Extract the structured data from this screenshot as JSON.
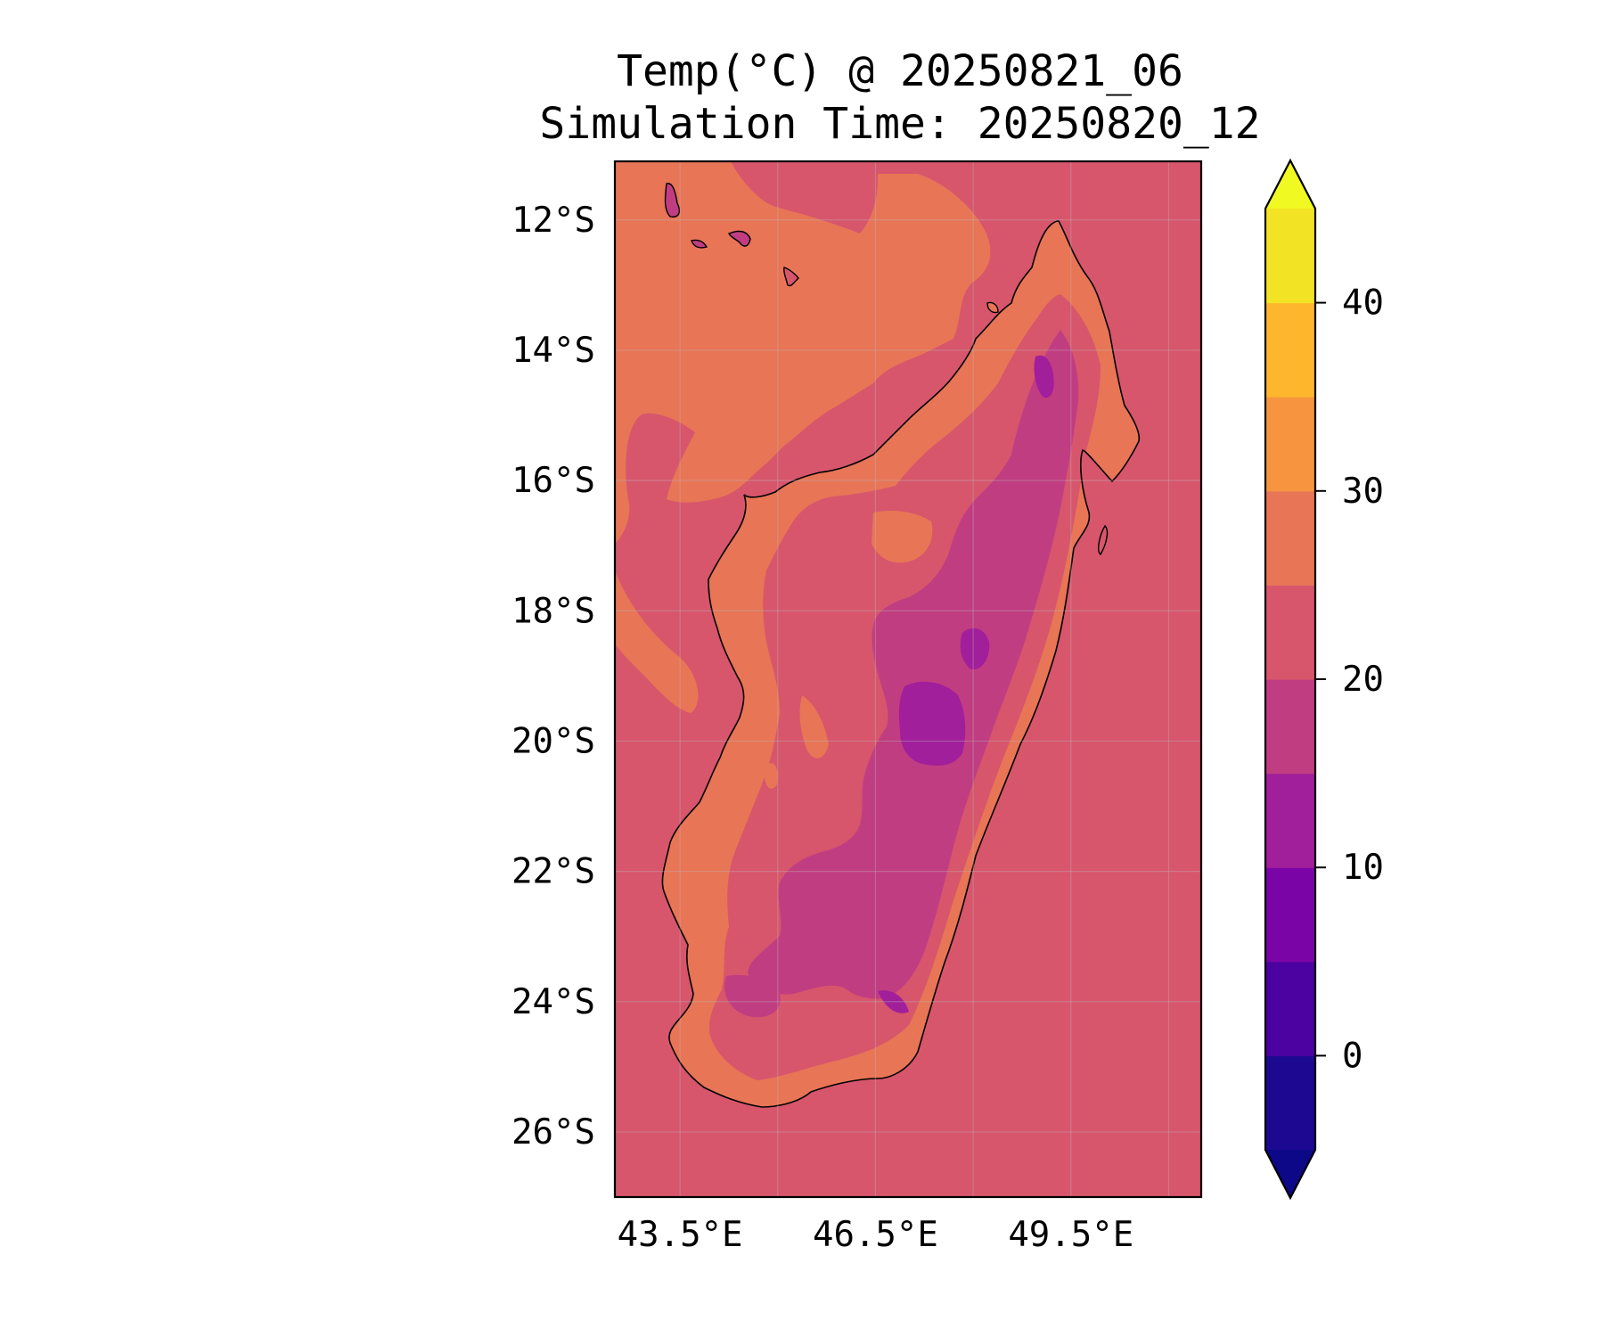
{
  "title": "Temp(°C) @ 20250821_06",
  "subtitle": "Simulation Time: 20250820_12",
  "chart_data": {
    "type": "filled-contour map",
    "variable": "Temp(°C)",
    "valid_time": "20250821_06",
    "simulation_time": "20250820_12",
    "region": "Madagascar",
    "lon_range": [
      42.5,
      51.5
    ],
    "lat_range": [
      -27.0,
      -11.1
    ],
    "x_ticks": [
      {
        "value": 43.5,
        "label": "43.5°E"
      },
      {
        "value": 46.5,
        "label": "46.5°E"
      },
      {
        "value": 49.5,
        "label": "49.5°E"
      }
    ],
    "y_ticks": [
      {
        "value": -12,
        "label": "12°S"
      },
      {
        "value": -14,
        "label": "14°S"
      },
      {
        "value": -16,
        "label": "16°S"
      },
      {
        "value": -18,
        "label": "18°S"
      },
      {
        "value": -20,
        "label": "20°S"
      },
      {
        "value": -22,
        "label": "22°S"
      },
      {
        "value": -24,
        "label": "24°S"
      },
      {
        "value": -26,
        "label": "26°S"
      }
    ],
    "grid": true,
    "colorbar": {
      "placement": "right",
      "extend": "both",
      "levels": [
        -5,
        0,
        5,
        10,
        15,
        20,
        25,
        30,
        35,
        40,
        45
      ],
      "colors": [
        "#1d0892",
        "#4b02a1",
        "#7b04a7",
        "#a11f9b",
        "#c13d82",
        "#d7566c",
        "#e87556",
        "#f79440",
        "#feb62c",
        "#f3e325"
      ],
      "under_color": "#0d0887",
      "over_color": "#f0f921",
      "ticks": [
        {
          "value": 0,
          "label": "0"
        },
        {
          "value": 10,
          "label": "10"
        },
        {
          "value": 20,
          "label": "20"
        },
        {
          "value": 30,
          "label": "30"
        },
        {
          "value": 40,
          "label": "40"
        }
      ]
    },
    "field_summary": {
      "ocean_background_band": [
        20,
        25
      ],
      "northwest_ocean_band": [
        25,
        30
      ],
      "coastal_lowlands_band": [
        25,
        30
      ],
      "central_highlands_band": [
        15,
        20
      ],
      "coldest_pocket_band": [
        10,
        15
      ]
    }
  }
}
